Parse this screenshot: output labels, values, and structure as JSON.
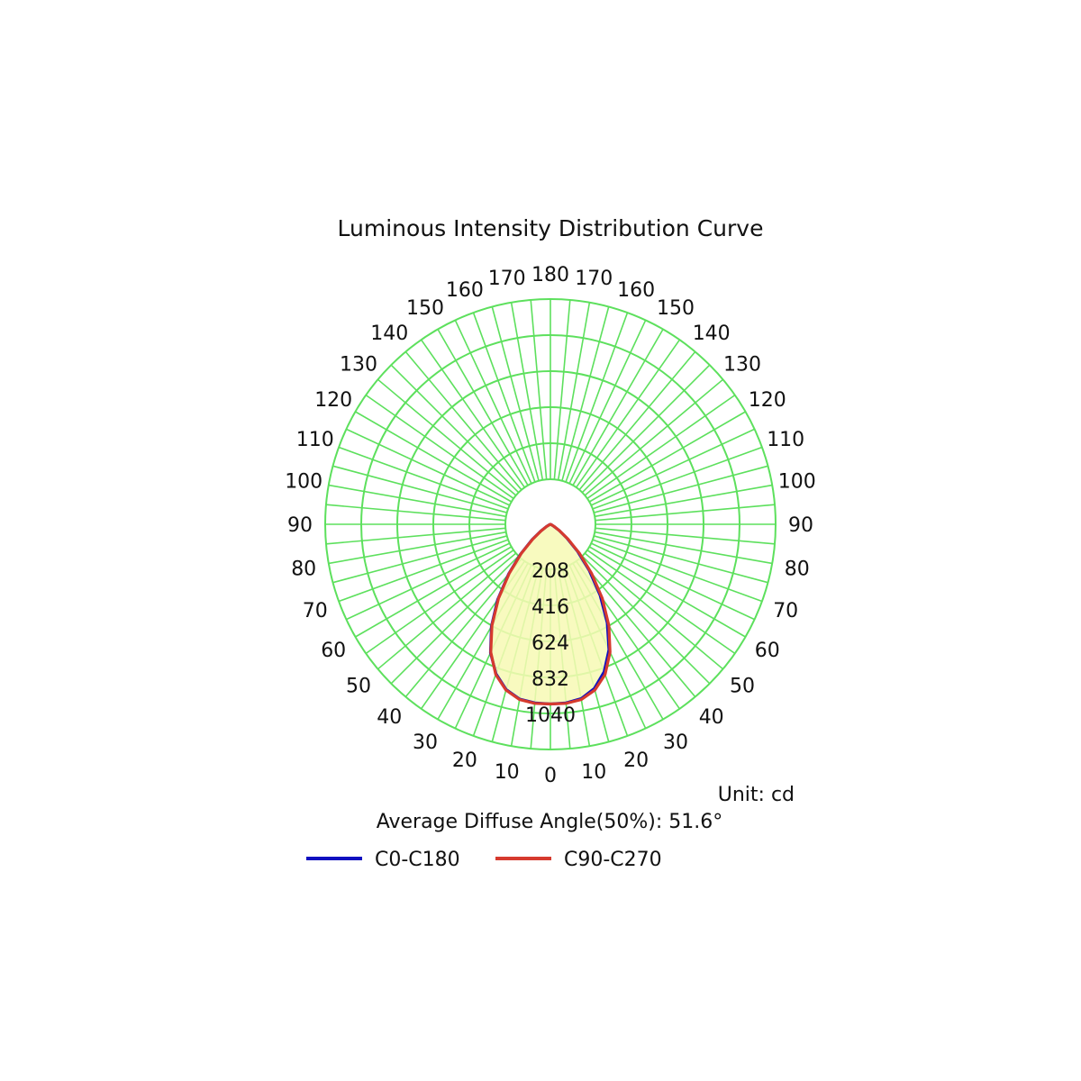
{
  "chart_data": {
    "type": "polar",
    "title": "Luminous Intensity Distribution Curve",
    "unit_label": "Unit: cd",
    "beam_label": "Average Diffuse Angle(50%): 51.6°",
    "angle_labels_left": [
      "10",
      "20",
      "30",
      "40",
      "50",
      "60",
      "70",
      "80",
      "90",
      "100",
      "110",
      "120",
      "130",
      "140",
      "150",
      "160",
      "170"
    ],
    "angle_labels_right": [
      "10",
      "20",
      "30",
      "40",
      "50",
      "60",
      "70",
      "80",
      "90",
      "100",
      "110",
      "120",
      "130",
      "140",
      "150",
      "160",
      "170"
    ],
    "angle_label_bottom": "0",
    "angle_label_top": "180",
    "radial_ticks": [
      208,
      416,
      624,
      832,
      1040
    ],
    "radial_tick_labels": [
      "208",
      "416",
      "624",
      "832",
      "1040"
    ],
    "rmax": 1040,
    "grid": true,
    "colors": {
      "grid": "#5de05d",
      "fill": "#f7f9b4",
      "c0": "#1010c0",
      "c90": "#d63a2e"
    },
    "series": [
      {
        "name": "C0-C180",
        "angles": [
          0,
          5,
          10,
          15,
          20,
          25,
          30,
          35,
          40,
          45,
          50,
          55,
          60,
          65,
          70,
          75,
          80,
          85,
          90
        ],
        "left": [
          830,
          828,
          820,
          790,
          735,
          655,
          545,
          425,
          300,
          195,
          110,
          55,
          20,
          5,
          1,
          0,
          0,
          0,
          0
        ],
        "right": [
          830,
          828,
          818,
          785,
          725,
          640,
          525,
          400,
          280,
          178,
          100,
          48,
          18,
          4,
          1,
          0,
          0,
          0,
          0
        ]
      },
      {
        "name": "C90-C270",
        "angles": [
          0,
          5,
          10,
          15,
          20,
          25,
          30,
          35,
          40,
          45,
          50,
          55,
          60,
          65,
          70,
          75,
          80,
          85,
          90
        ],
        "left": [
          830,
          830,
          822,
          793,
          738,
          652,
          540,
          418,
          295,
          190,
          106,
          52,
          19,
          5,
          1,
          0,
          0,
          0,
          0
        ],
        "right": [
          830,
          830,
          822,
          793,
          738,
          652,
          540,
          418,
          295,
          190,
          106,
          52,
          19,
          5,
          1,
          0,
          0,
          0,
          0
        ]
      }
    ],
    "legend": [
      {
        "name": "C0-C180",
        "color": "#1010c0"
      },
      {
        "name": "C90-C270",
        "color": "#d63a2e"
      }
    ]
  }
}
